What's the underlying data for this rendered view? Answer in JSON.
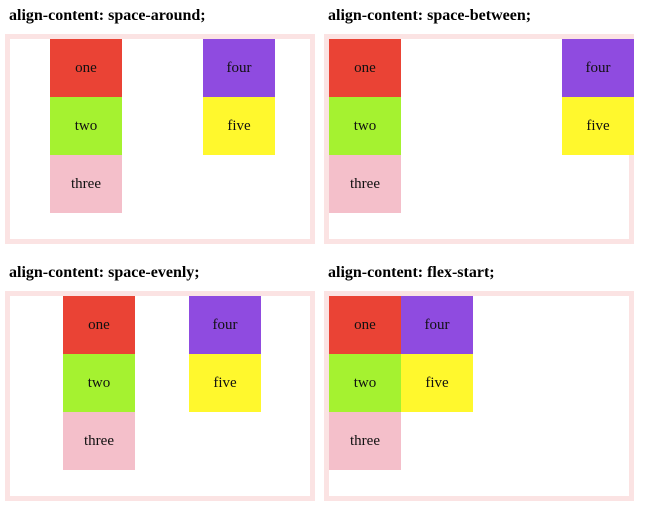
{
  "panels": [
    {
      "title": "align-content: space-around;",
      "items": [
        "one",
        "two",
        "three",
        "four",
        "five"
      ]
    },
    {
      "title": "align-content: space-between;",
      "items": [
        "one",
        "two",
        "three",
        "four",
        "five"
      ]
    },
    {
      "title": "align-content: space-evenly;",
      "items": [
        "one",
        "two",
        "three",
        "four",
        "five"
      ]
    },
    {
      "title": "align-content: flex-start;",
      "items": [
        "one",
        "two",
        "three",
        "four",
        "five"
      ]
    }
  ],
  "colors": {
    "one": "#ea4335",
    "two": "#a5f230",
    "three": "#f4bfca",
    "four": "#8f4be0",
    "five": "#fff82d",
    "border": "#fbe3e3"
  }
}
